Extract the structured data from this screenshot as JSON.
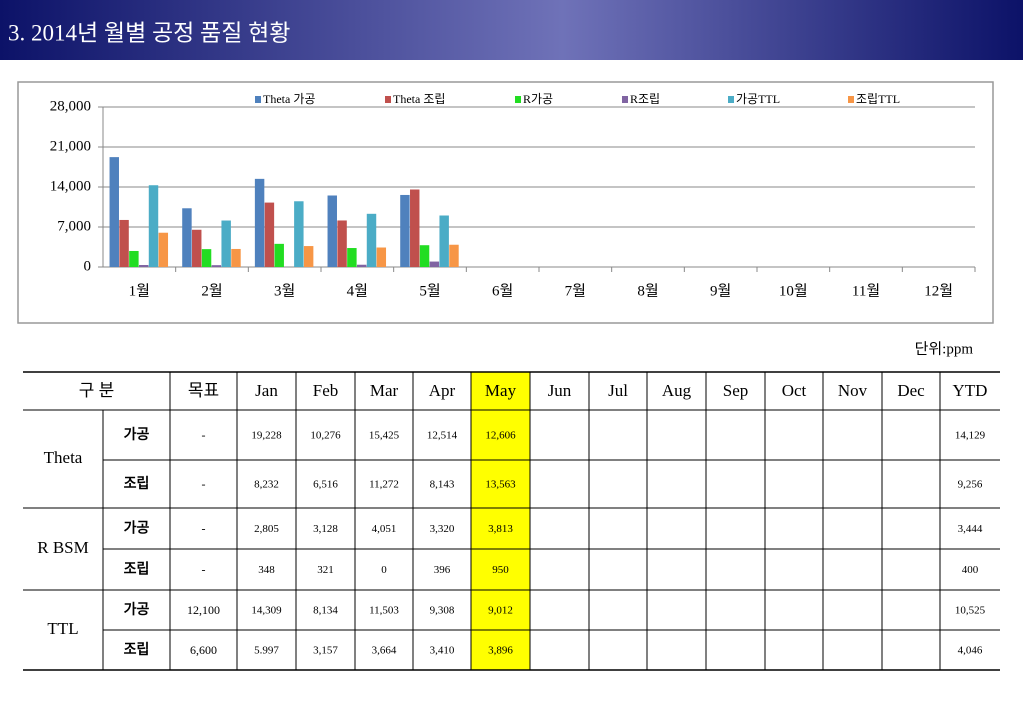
{
  "header": {
    "title": "3. 2014년 월별 공정 품질 현황"
  },
  "chart_data": {
    "type": "bar",
    "categories": [
      "1월",
      "2월",
      "3월",
      "4월",
      "5월",
      "6월",
      "7월",
      "8월",
      "9월",
      "10월",
      "11월",
      "12월"
    ],
    "series": [
      {
        "name": "Theta 가공",
        "color": "#4f81bd",
        "values": [
          19228,
          10276,
          15425,
          12514,
          12606,
          null,
          null,
          null,
          null,
          null,
          null,
          null
        ]
      },
      {
        "name": "Theta 조립",
        "color": "#c0504d",
        "values": [
          8232,
          6516,
          11272,
          8143,
          13563,
          null,
          null,
          null,
          null,
          null,
          null,
          null
        ]
      },
      {
        "name": "R가공",
        "color": "#22dd22",
        "values": [
          2805,
          3128,
          4051,
          3320,
          3813,
          null,
          null,
          null,
          null,
          null,
          null,
          null
        ]
      },
      {
        "name": "R조립",
        "color": "#8064a2",
        "values": [
          348,
          321,
          0,
          396,
          950,
          null,
          null,
          null,
          null,
          null,
          null,
          null
        ]
      },
      {
        "name": "가공TTL",
        "color": "#4bacc6",
        "values": [
          14309,
          8134,
          11503,
          9308,
          9012,
          null,
          null,
          null,
          null,
          null,
          null,
          null
        ]
      },
      {
        "name": "조립TTL",
        "color": "#f79646",
        "values": [
          5997,
          3157,
          3664,
          3410,
          3896,
          null,
          null,
          null,
          null,
          null,
          null,
          null
        ]
      }
    ],
    "ylim": [
      0,
      28000
    ],
    "yticks": [
      0,
      {
        "value": 7000,
        "label": "7,000"
      },
      {
        "value": 14000,
        "label": "14,000"
      },
      {
        "value": 21000,
        "label": "21,000"
      },
      {
        "value": 28000,
        "label": "28,000"
      }
    ],
    "grid": true,
    "legend": "top"
  },
  "unit": "단위:ppm",
  "table": {
    "header": [
      "구 분",
      "목표",
      "Jan",
      "Feb",
      "Mar",
      "Apr",
      "May",
      "Jun",
      "Jul",
      "Aug",
      "Sep",
      "Oct",
      "Nov",
      "Dec",
      "YTD"
    ],
    "groups": [
      {
        "label": "Theta",
        "rows": [
          {
            "label": "가공",
            "target": "-",
            "values": [
              "19,228",
              "10,276",
              "15,425",
              "12,514",
              "12,606"
            ],
            "ytd": "14,129"
          },
          {
            "label": "조립",
            "target": "-",
            "values": [
              "8,232",
              "6,516",
              "11,272",
              "8,143",
              "13,563"
            ],
            "ytd": "9,256"
          }
        ]
      },
      {
        "label": "R BSM",
        "rows": [
          {
            "label": "가공",
            "target": "-",
            "values": [
              "2,805",
              "3,128",
              "4,051",
              "3,320",
              "3,813"
            ],
            "ytd": "3,444"
          },
          {
            "label": "조립",
            "target": "-",
            "values": [
              "348",
              "321",
              "0",
              "396",
              "950"
            ],
            "ytd": "400"
          }
        ]
      },
      {
        "label": "TTL",
        "rows": [
          {
            "label": "가공",
            "target": "12,100",
            "values": [
              "14,309",
              "8,134",
              "11,503",
              "9,308",
              "9,012"
            ],
            "ytd": "10,525"
          },
          {
            "label": "조립",
            "target": "6,600",
            "values": [
              "5.997",
              "3,157",
              "3,664",
              "3,410",
              "3,896"
            ],
            "ytd": "4,046"
          }
        ]
      }
    ]
  }
}
